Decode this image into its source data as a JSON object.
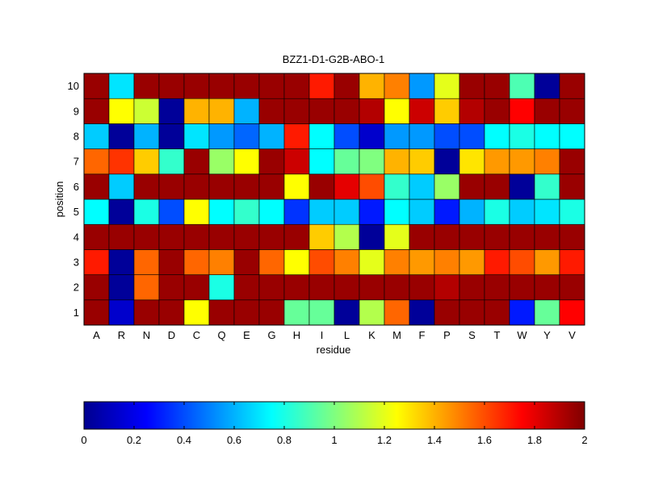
{
  "chart_data": {
    "type": "heatmap",
    "title": "BZZ1-D1-G2B-ABO-1",
    "xlabel": "residue",
    "ylabel": "position",
    "x_categories": [
      "A",
      "R",
      "N",
      "D",
      "C",
      "Q",
      "E",
      "G",
      "H",
      "I",
      "L",
      "K",
      "M",
      "F",
      "P",
      "S",
      "T",
      "W",
      "Y",
      "V"
    ],
    "y_categories": [
      "1",
      "2",
      "3",
      "4",
      "5",
      "6",
      "7",
      "8",
      "9",
      "10"
    ],
    "colormap": "jet",
    "clim": [
      0,
      2
    ],
    "colorbar": {
      "orientation": "horizontal",
      "placement": "bottom",
      "tick_values": [
        0,
        0.2,
        0.4,
        0.6,
        0.8,
        1,
        1.2,
        1.4,
        1.6,
        1.8,
        2
      ],
      "tick_labels": [
        "0",
        "0.2",
        "0.4",
        "0.6",
        "0.8",
        "1",
        "1.2",
        "1.4",
        "1.6",
        "1.8",
        "2"
      ]
    },
    "grid": true,
    "values": {
      "1": [
        1.95,
        0.15,
        1.95,
        1.95,
        1.25,
        1.95,
        1.95,
        1.95,
        0.95,
        0.95,
        0.05,
        1.1,
        1.55,
        0.05,
        1.95,
        1.95,
        1.95,
        0.3,
        0.95,
        1.75
      ],
      "2": [
        1.95,
        0.05,
        1.55,
        1.95,
        1.95,
        0.8,
        1.95,
        1.95,
        1.95,
        1.95,
        1.95,
        1.95,
        1.95,
        1.95,
        1.9,
        1.95,
        1.95,
        1.95,
        1.95,
        1.95
      ],
      "3": [
        1.7,
        0.05,
        1.55,
        1.95,
        1.55,
        1.5,
        1.95,
        1.55,
        1.25,
        1.6,
        1.5,
        1.2,
        1.5,
        1.45,
        1.5,
        1.45,
        1.7,
        1.6,
        1.45,
        1.7
      ],
      "4": [
        1.95,
        1.95,
        1.95,
        1.95,
        1.95,
        1.95,
        1.95,
        1.95,
        1.95,
        1.35,
        1.1,
        0.05,
        1.2,
        1.95,
        1.95,
        1.95,
        1.95,
        1.95,
        1.95,
        1.95
      ],
      "5": [
        0.75,
        0.05,
        0.8,
        0.4,
        1.25,
        0.75,
        0.85,
        0.75,
        0.35,
        0.65,
        0.65,
        0.3,
        0.75,
        0.65,
        0.3,
        0.6,
        0.8,
        0.65,
        0.7,
        0.8
      ],
      "6": [
        1.95,
        0.65,
        1.95,
        1.95,
        1.95,
        1.95,
        1.95,
        1.95,
        1.25,
        1.95,
        1.8,
        1.6,
        0.85,
        0.65,
        1.05,
        1.95,
        1.95,
        0.05,
        0.85,
        1.95
      ],
      "7": [
        1.55,
        1.65,
        1.35,
        0.85,
        1.95,
        1.05,
        1.25,
        1.95,
        1.85,
        0.75,
        0.95,
        1.0,
        1.4,
        1.35,
        0.05,
        1.3,
        1.45,
        1.45,
        1.5,
        1.95
      ],
      "8": [
        0.65,
        0.05,
        0.6,
        0.05,
        0.7,
        0.55,
        0.45,
        0.6,
        1.7,
        0.75,
        0.4,
        0.15,
        0.55,
        0.55,
        0.4,
        0.4,
        0.75,
        0.8,
        0.75,
        0.75
      ],
      "9": [
        1.95,
        1.25,
        1.15,
        0.05,
        1.4,
        1.4,
        0.6,
        1.95,
        1.95,
        1.95,
        1.95,
        1.9,
        1.25,
        1.85,
        1.35,
        1.9,
        1.95,
        1.75,
        1.95,
        1.95
      ],
      "10": [
        1.95,
        0.7,
        1.95,
        1.95,
        1.95,
        1.95,
        1.95,
        1.95,
        1.95,
        1.7,
        1.95,
        1.4,
        1.5,
        0.55,
        1.2,
        1.95,
        1.95,
        0.9,
        0.05,
        1.95
      ]
    }
  }
}
